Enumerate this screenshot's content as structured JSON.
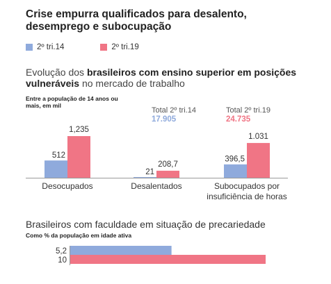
{
  "title": "Crise empurra qualificados para desalento, desemprego e subocupação",
  "colors": {
    "tri14": "#8faadc",
    "tri19": "#f07585"
  },
  "legend": [
    {
      "label": "2º tri.14",
      "color": "#8faadc"
    },
    {
      "label": "2º tri.19",
      "color": "#f07585"
    }
  ],
  "section1": {
    "subtitle_plain_1": "Evolução dos ",
    "subtitle_bold": "brasileiros com ensino superior em posições vulneráveis",
    "subtitle_plain_2": " no mercado de trabalho",
    "note": "Entre a população de 14 anos ou mais, em mil",
    "totals": [
      {
        "label": "Total 2º tri.14",
        "value": "17.905",
        "color": "#8faadc"
      },
      {
        "label": "Total 2º tri.19",
        "value": "24.735",
        "color": "#f07585"
      }
    ]
  },
  "section2": {
    "subtitle": "Brasileiros com faculdade em situação de precariedade",
    "note": "Como % da população em idade ativa"
  },
  "chart_data": [
    {
      "type": "bar",
      "categories": [
        "Desocupados",
        "Desalentados",
        "Subocupados por insuficiência de horas"
      ],
      "category_lines": [
        [
          "Desocupados"
        ],
        [
          "Desalentados"
        ],
        [
          "Subocupados por",
          "insuficiência de horas"
        ]
      ],
      "series": [
        {
          "name": "2º tri.14",
          "values": [
            512,
            21,
            396.5
          ],
          "labels": [
            "512",
            "21",
            "396,5"
          ]
        },
        {
          "name": "2º tri.19",
          "values": [
            1235,
            208.7,
            1031
          ],
          "labels": [
            "1,235",
            "208,7",
            "1.031"
          ]
        }
      ],
      "ylim": [
        0,
        1235
      ]
    },
    {
      "type": "bar",
      "orientation": "horizontal",
      "series": [
        {
          "name": "2º tri.14",
          "values": [
            5.2
          ],
          "labels": [
            "5,2"
          ]
        },
        {
          "name": "2º tri.19",
          "values": [
            10
          ],
          "labels": [
            "10"
          ]
        }
      ],
      "xlim": [
        0,
        10
      ]
    }
  ]
}
